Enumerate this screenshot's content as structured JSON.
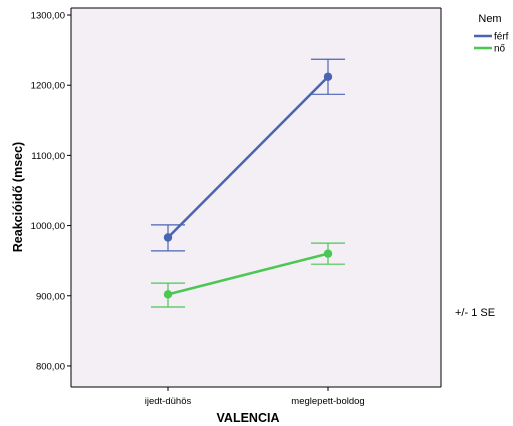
{
  "chart_data": {
    "type": "line",
    "categories": [
      "ijedt-dühös",
      "meglepett-boldog"
    ],
    "xlabel": "VALENCIA",
    "ylabel": "Reakcióidő (msec)",
    "ylim": [
      770,
      1310
    ],
    "yticks": [
      800,
      900,
      1000,
      1100,
      1200,
      1300
    ],
    "ytick_labels": [
      "800,00",
      "900,00",
      "1000,00",
      "1100,00",
      "1200,00",
      "1300,00"
    ],
    "grid": false,
    "legend": {
      "title": "Nem",
      "placement": "top-right, outside plot"
    },
    "series": [
      {
        "name": "férf",
        "color": "#4a64b4",
        "values": [
          983,
          1212
        ],
        "se_low": [
          964,
          1187
        ],
        "se_high": [
          1001,
          1237
        ]
      },
      {
        "name": "nő",
        "color": "#4cc753",
        "values": [
          902,
          960
        ],
        "se_low": [
          884,
          945
        ],
        "se_high": [
          918,
          975
        ]
      }
    ],
    "annotation": "+/- 1 SE",
    "plot_background": "#f3eff4"
  }
}
